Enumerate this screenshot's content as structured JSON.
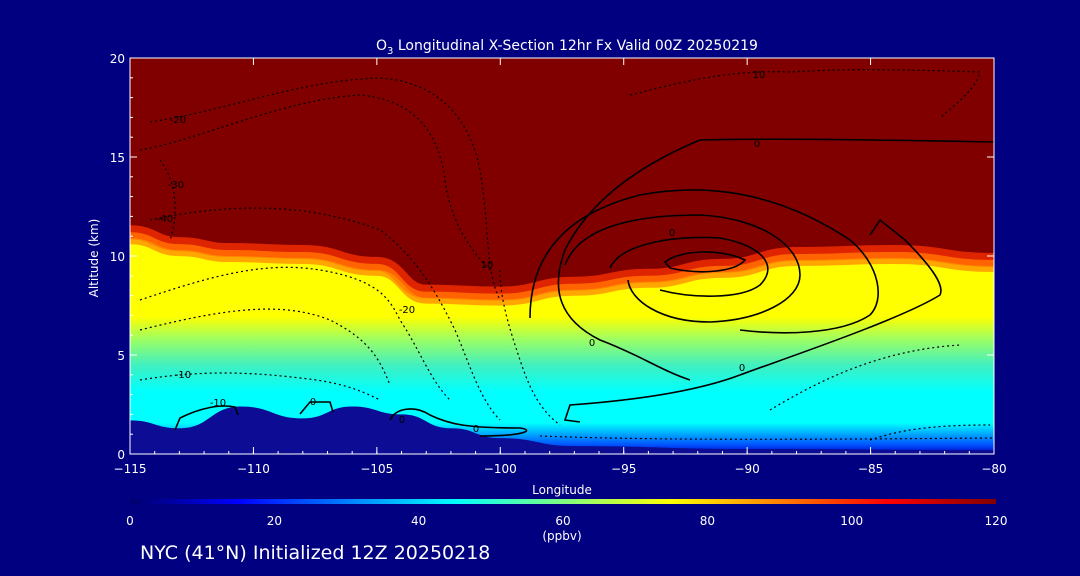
{
  "chart_data": {
    "type": "heatmap",
    "title_prefix": "O",
    "title_sub": "3",
    "title_rest": " Longitudinal X-Section 12hr  Fx Valid 00Z 20250219",
    "xlabel": "Longitude",
    "ylabel": "Altitude (km)",
    "xlim": [
      -115,
      -80
    ],
    "ylim": [
      0,
      20
    ],
    "x_ticks": [
      -115,
      -110,
      -105,
      -100,
      -95,
      -90,
      -85,
      -80
    ],
    "x_tick_labels": [
      "−115",
      "−110",
      "−105",
      "−100",
      "−95",
      "−90",
      "−85",
      "−80"
    ],
    "y_ticks": [
      0,
      5,
      10,
      15,
      20
    ],
    "y_tick_labels": [
      "0",
      "5",
      "10",
      "15",
      "20"
    ],
    "colorbar": {
      "min": 0,
      "max": 120,
      "ticks": [
        0,
        20,
        40,
        60,
        80,
        100,
        120
      ],
      "tick_labels": [
        "0",
        "20",
        "40",
        "60",
        "80",
        "100",
        "120"
      ],
      "units": "(ppbv)",
      "colors": [
        "#00006a",
        "#0000ff",
        "#0080ff",
        "#00ffff",
        "#80ff80",
        "#ffff00",
        "#ff8000",
        "#ff0000",
        "#800000"
      ]
    },
    "field_stratosphere_ppbv": 120,
    "tropopause_height_km": [
      [
        -115,
        11.2
      ],
      [
        -113,
        10.6
      ],
      [
        -111,
        10.3
      ],
      [
        -108,
        10.2
      ],
      [
        -105,
        9.6
      ],
      [
        -103,
        8.2
      ],
      [
        -100,
        8.1
      ],
      [
        -97,
        8.6
      ],
      [
        -94,
        9.0
      ],
      [
        -91,
        9.5
      ],
      [
        -88,
        10.1
      ],
      [
        -84,
        10.2
      ],
      [
        -80,
        9.8
      ]
    ],
    "terrain_height_km": [
      [
        -115,
        1.7
      ],
      [
        -113,
        1.3
      ],
      [
        -110.5,
        2.4
      ],
      [
        -108,
        1.8
      ],
      [
        -106,
        2.4
      ],
      [
        -104,
        2.0
      ],
      [
        -102,
        1.3
      ],
      [
        -100,
        0.8
      ],
      [
        -97,
        0.4
      ],
      [
        -90,
        0.25
      ],
      [
        -80,
        0.2
      ]
    ],
    "contour_labels": [
      "-40",
      "-30",
      "-20",
      "-20",
      "-10",
      "-10",
      "0",
      "0",
      "0",
      "0",
      "0",
      "0",
      "0",
      "10",
      "10"
    ]
  },
  "footer": "NYC (41°N) Initialized 12Z 20250218"
}
